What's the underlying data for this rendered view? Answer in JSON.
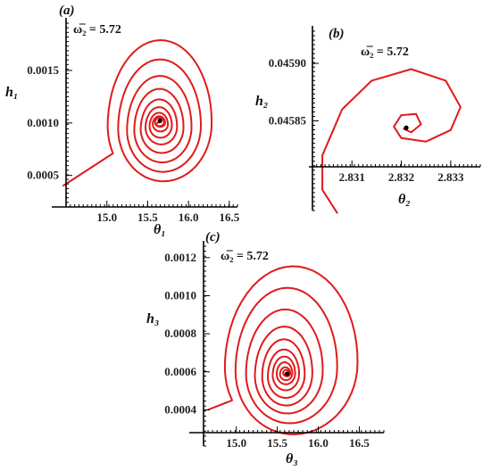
{
  "chart_data": [
    {
      "panel": "(a)",
      "type": "line",
      "parameter": "ω̅₂ = 5.72",
      "xlabel": "θ₁",
      "ylabel": "h₁",
      "xticks": [
        "15.0",
        "15.5",
        "16.0",
        "16.5"
      ],
      "yticks": [
        "0.0005",
        "0.0010",
        "0.0015"
      ],
      "xlim": [
        14.5,
        16.6
      ],
      "ylim": [
        0.0002,
        0.00195
      ],
      "series": [
        {
          "style": "inward spiral to equilibrium",
          "start": [
            14.46,
            0.0004
          ],
          "equilibrium": [
            15.65,
            0.00102
          ],
          "rings": [
            {
              "left": 15.0,
              "right": 16.37,
              "top": 0.00185,
              "bottom": 0.00037
            },
            {
              "left": 15.13,
              "right": 16.22,
              "top": 0.00166,
              "bottom": 0.00046
            },
            {
              "left": 15.24,
              "right": 16.1,
              "top": 0.00149,
              "bottom": 0.00055
            },
            {
              "left": 15.33,
              "right": 15.99,
              "top": 0.00136,
              "bottom": 0.00064
            },
            {
              "left": 15.41,
              "right": 15.9,
              "top": 0.00125,
              "bottom": 0.00073
            },
            {
              "left": 15.47,
              "right": 15.83,
              "top": 0.00117,
              "bottom": 0.00081
            },
            {
              "left": 15.52,
              "right": 15.77,
              "top": 0.00111,
              "bottom": 0.00087
            },
            {
              "left": 15.56,
              "right": 15.73,
              "top": 0.00107,
              "bottom": 0.00093
            },
            {
              "left": 15.59,
              "right": 15.7,
              "top": 0.00105,
              "bottom": 0.00097
            }
          ]
        }
      ]
    },
    {
      "panel": "(b)",
      "type": "line",
      "parameter": "ω̅₂ = 5.72",
      "xlabel": "θ₂",
      "ylabel": "h₂",
      "xticks": [
        "2.831",
        "2.832",
        "2.833"
      ],
      "yticks": [
        "0.04585",
        "0.04590"
      ],
      "xlim": [
        2.8302,
        2.8336
      ],
      "ylim": [
        0.045772,
        0.045928
      ],
      "series": [
        {
          "style": "spiral to equilibrium",
          "start": [
            2.8307,
            0.04577
          ],
          "equilibrium": [
            2.8321,
            0.045844
          ],
          "points": [
            [
              2.8307,
              0.04577
            ],
            [
              2.8304,
              0.04579
            ],
            [
              2.8304,
              0.04582
            ],
            [
              2.8308,
              0.04586
            ],
            [
              2.8314,
              0.045885
            ],
            [
              2.8322,
              0.045895
            ],
            [
              2.8329,
              0.045885
            ],
            [
              2.8332,
              0.045862
            ],
            [
              2.833,
              0.045842
            ],
            [
              2.8325,
              0.045832
            ],
            [
              2.832,
              0.045835
            ],
            [
              2.83185,
              0.045845
            ],
            [
              2.832,
              0.045855
            ],
            [
              2.8323,
              0.045856
            ],
            [
              2.8324,
              0.045847
            ],
            [
              2.8322,
              0.04584
            ],
            [
              2.83205,
              0.045843
            ],
            [
              2.8321,
              0.045844
            ]
          ]
        }
      ]
    },
    {
      "panel": "(c)",
      "type": "line",
      "parameter": "ω̅₂ = 5.72",
      "xlabel": "θ₃",
      "ylabel": "h₃",
      "xticks": [
        "15.0",
        "15.5",
        "16.0",
        "16.5"
      ],
      "yticks": [
        "0.0004",
        "0.0006",
        "0.0008",
        "0.0010",
        "0.0012"
      ],
      "xlim": [
        14.6,
        16.8
      ],
      "ylim": [
        0.00021,
        0.00126
      ],
      "series": [
        {
          "style": "inward spiral to equilibrium",
          "start": [
            14.65,
            0.0004
          ],
          "equilibrium": [
            15.62,
            0.00059
          ],
          "rings": [
            {
              "left": 14.85,
              "right": 16.65,
              "top": 0.00119,
              "bottom": 0.00023
            },
            {
              "left": 14.98,
              "right": 16.35,
              "top": 0.00108,
              "bottom": 0.00028
            },
            {
              "left": 15.11,
              "right": 16.14,
              "top": 0.00096,
              "bottom": 0.00034
            },
            {
              "left": 15.22,
              "right": 15.99,
              "top": 0.00086,
              "bottom": 0.00039
            },
            {
              "left": 15.31,
              "right": 15.88,
              "top": 0.00079,
              "bottom": 0.00043
            },
            {
              "left": 15.38,
              "right": 15.8,
              "top": 0.00073,
              "bottom": 0.00047
            },
            {
              "left": 15.44,
              "right": 15.74,
              "top": 0.00069,
              "bottom": 0.00051
            },
            {
              "left": 15.49,
              "right": 15.7,
              "top": 0.00066,
              "bottom": 0.00054
            },
            {
              "left": 15.53,
              "right": 15.67,
              "top": 0.00063,
              "bottom": 0.00056
            },
            {
              "left": 15.57,
              "right": 15.65,
              "top": 0.00061,
              "bottom": 0.00058
            }
          ]
        }
      ]
    }
  ],
  "colors": {
    "curve": "#e01b1b",
    "equilibrium_dot": "#000000",
    "axes": "#000000"
  }
}
